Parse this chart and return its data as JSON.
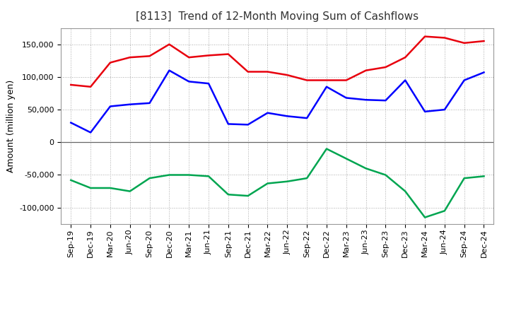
{
  "title": "[8113]  Trend of 12-Month Moving Sum of Cashflows",
  "ylabel": "Amount (million yen)",
  "labels": [
    "Sep-19",
    "Dec-19",
    "Mar-20",
    "Jun-20",
    "Sep-20",
    "Dec-20",
    "Mar-21",
    "Jun-21",
    "Sep-21",
    "Dec-21",
    "Mar-22",
    "Jun-22",
    "Sep-22",
    "Dec-22",
    "Mar-23",
    "Jun-23",
    "Sep-23",
    "Dec-23",
    "Mar-24",
    "Jun-24",
    "Sep-24",
    "Dec-24"
  ],
  "operating": [
    88000,
    85000,
    122000,
    130000,
    132000,
    150000,
    130000,
    133000,
    135000,
    108000,
    108000,
    103000,
    95000,
    95000,
    95000,
    110000,
    115000,
    130000,
    162000,
    160000,
    152000,
    155000
  ],
  "investing": [
    -58000,
    -70000,
    -70000,
    -75000,
    -55000,
    -50000,
    -50000,
    -52000,
    -80000,
    -82000,
    -63000,
    -60000,
    -55000,
    -10000,
    -25000,
    -40000,
    -50000,
    -75000,
    -115000,
    -105000,
    -55000,
    -52000
  ],
  "free": [
    30000,
    15000,
    55000,
    58000,
    60000,
    110000,
    93000,
    90000,
    28000,
    27000,
    45000,
    40000,
    37000,
    85000,
    68000,
    65000,
    64000,
    95000,
    47000,
    50000,
    95000,
    107000
  ],
  "operating_color": "#e8000d",
  "investing_color": "#00a550",
  "free_color": "#0000ff",
  "background_color": "#ffffff",
  "plot_bg_color": "#ffffff",
  "grid_color": "#aaaaaa",
  "ylim": [
    -125000,
    175000
  ],
  "yticks": [
    -100000,
    -50000,
    0,
    50000,
    100000,
    150000
  ],
  "title_fontsize": 11,
  "title_color": "#333333",
  "axis_fontsize": 9,
  "tick_fontsize": 8,
  "linewidth": 1.8
}
